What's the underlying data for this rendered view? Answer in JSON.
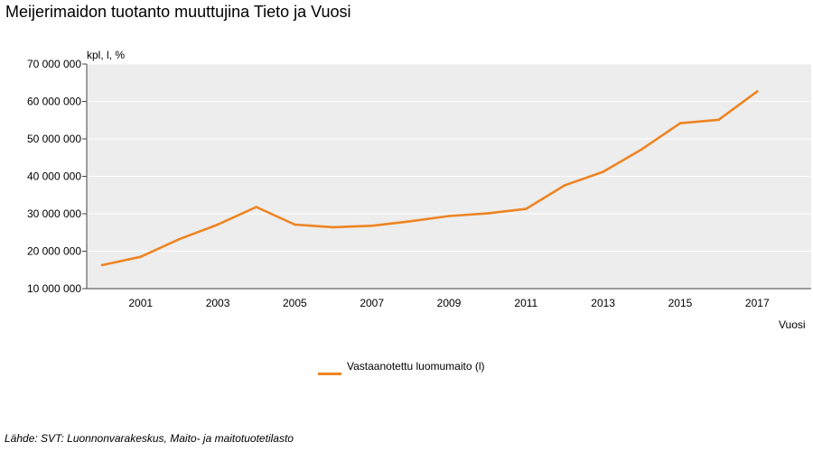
{
  "title": "Meijerimaidon tuotanto muuttujina Tieto ja Vuosi",
  "source": "Lähde: SVT: Luonnonvarakeskus, Maito- ja maitotuotetilasto",
  "colors": {
    "series": "#ee8422",
    "plot_bg": "#ededed",
    "grid": "#ffffff",
    "axis": "#444444"
  },
  "chart_data": {
    "type": "line",
    "title": "Meijerimaidon tuotanto muuttujina Tieto ja Vuosi",
    "xlabel": "Vuosi",
    "ylabel": "kpl, l, %",
    "xlim": [
      1999.6,
      2018.4
    ],
    "ylim": [
      10000000,
      70000000
    ],
    "xticks": [
      2001,
      2003,
      2005,
      2007,
      2009,
      2011,
      2013,
      2015,
      2017
    ],
    "xtick_labels": [
      "2001",
      "2003",
      "2005",
      "2007",
      "2009",
      "2011",
      "2013",
      "2015",
      "2017"
    ],
    "yticks": [
      10000000,
      20000000,
      30000000,
      40000000,
      50000000,
      60000000,
      70000000
    ],
    "ytick_labels": [
      "10 000 000",
      "20 000 000",
      "30 000 000",
      "40 000 000",
      "50 000 000",
      "60 000 000",
      "70 000 000"
    ],
    "grid": true,
    "legend_position": "bottom",
    "series": [
      {
        "name": "Vastaanotettu luomumaito (l)",
        "x": [
          2000,
          2001,
          2002,
          2003,
          2004,
          2005,
          2006,
          2007,
          2008,
          2009,
          2010,
          2011,
          2012,
          2013,
          2014,
          2015,
          2016,
          2017
        ],
        "values": [
          16300000,
          18500000,
          23200000,
          27100000,
          31800000,
          27100000,
          26400000,
          26800000,
          28000000,
          29400000,
          30100000,
          31300000,
          37600000,
          41200000,
          47200000,
          54200000,
          55100000,
          62700000
        ]
      }
    ]
  }
}
